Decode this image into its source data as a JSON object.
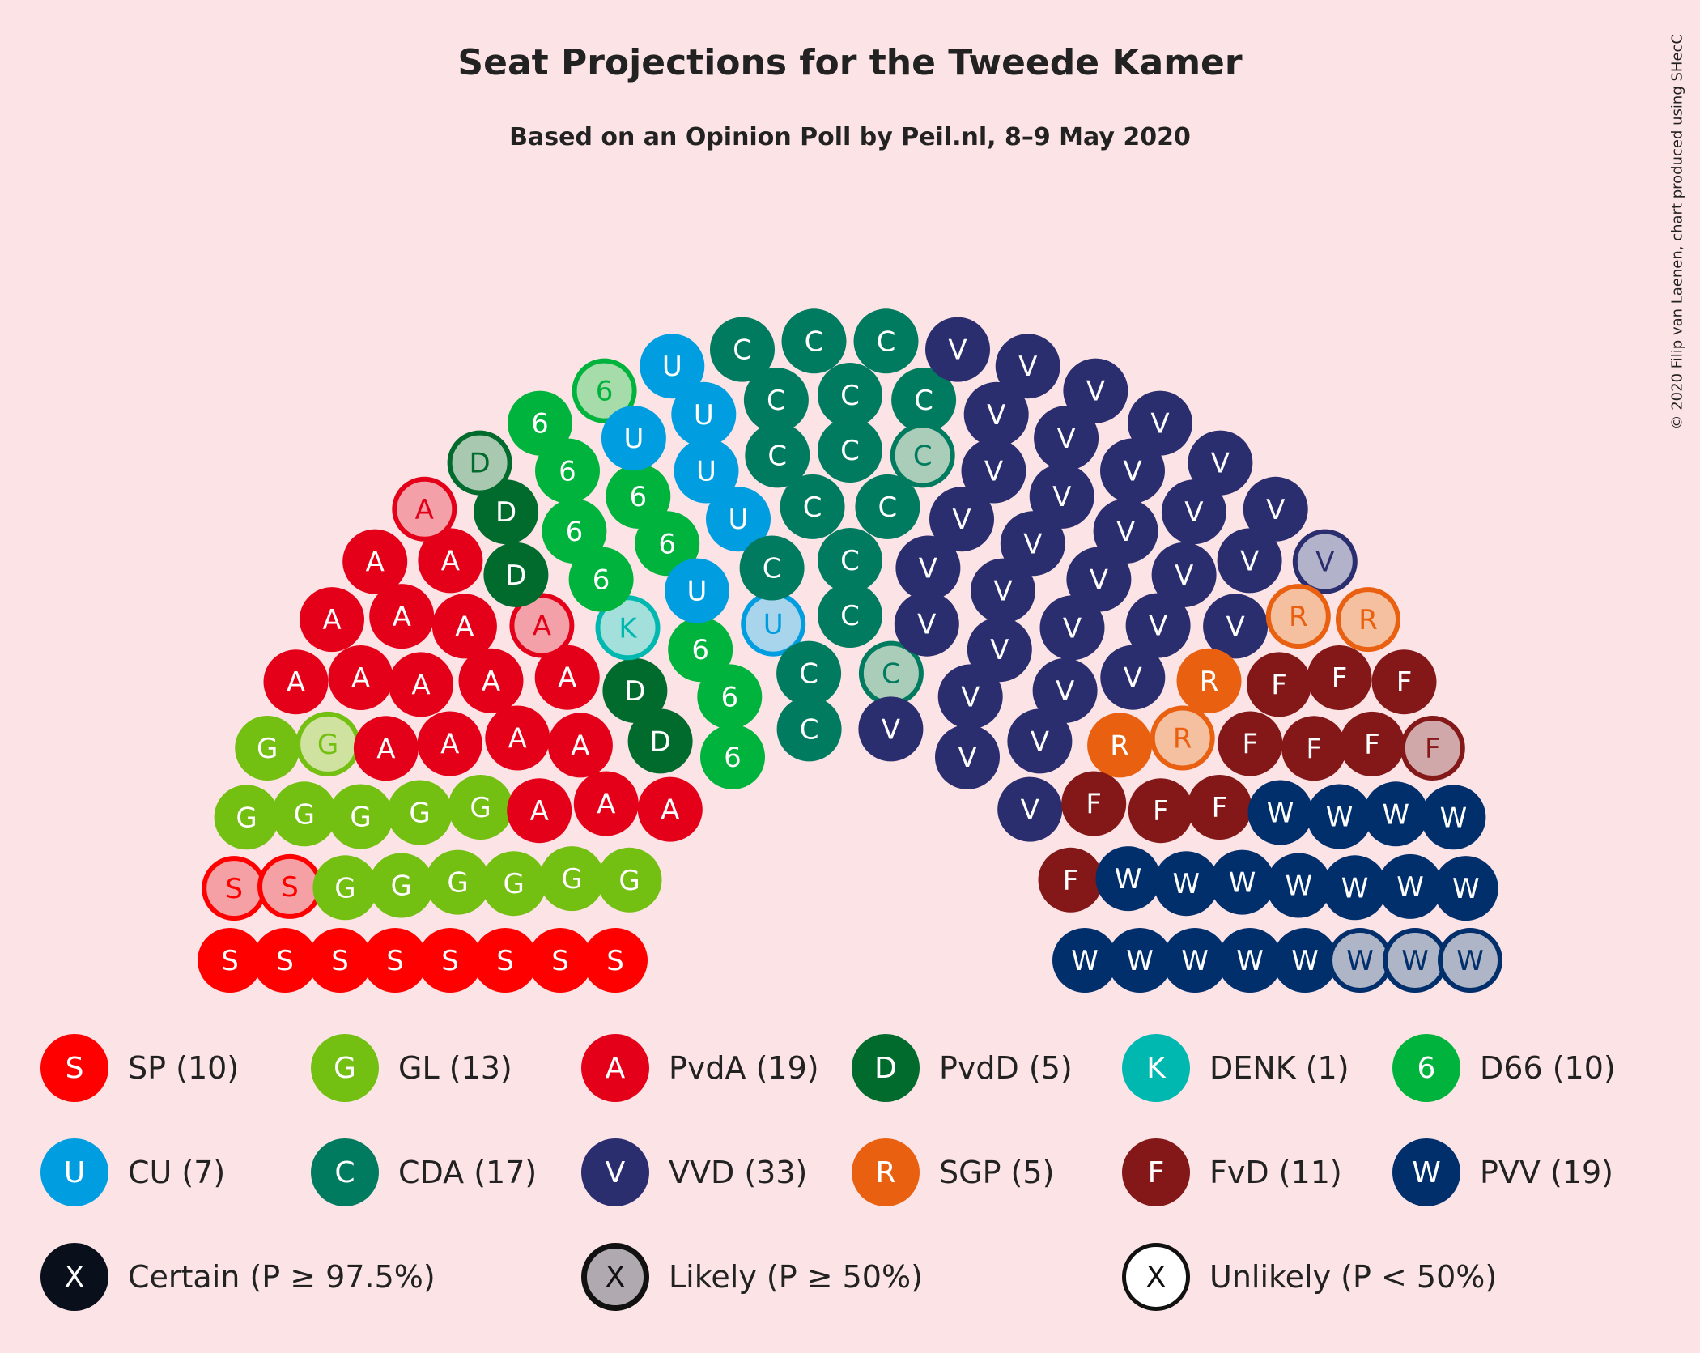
{
  "title": "Seat Projections for the Tweede Kamer",
  "subtitle": "Based on an Opinion Poll by Peil.nl, 8–9 May 2020",
  "credit": "© 2020 Filip van Laenen, chart produced using SHecC",
  "chart_data": {
    "type": "parliament",
    "total_seats": 150,
    "parties": [
      {
        "name": "SP",
        "letter": "S",
        "seats": 10,
        "certain": 8,
        "likely": 2,
        "color": "#ff0000",
        "light": "#f5a0a4"
      },
      {
        "name": "GL",
        "letter": "G",
        "seats": 13,
        "certain": 12,
        "likely": 1,
        "color": "#73bf12",
        "light": "#cfe29f"
      },
      {
        "name": "PvdA",
        "letter": "A",
        "seats": 19,
        "certain": 17,
        "likely": 2,
        "color": "#e50019",
        "light": "#f4a0a8"
      },
      {
        "name": "PvdD",
        "letter": "D",
        "seats": 5,
        "certain": 4,
        "likely": 1,
        "color": "#006b2d",
        "light": "#a9c8b0"
      },
      {
        "name": "DENK",
        "letter": "K",
        "seats": 1,
        "certain": 0,
        "likely": 1,
        "color": "#00b8b0",
        "light": "#a3e0dc"
      },
      {
        "name": "D66",
        "letter": "6",
        "seats": 10,
        "certain": 9,
        "likely": 1,
        "color": "#00b33c",
        "light": "#a5dca9"
      },
      {
        "name": "CU",
        "letter": "U",
        "seats": 7,
        "certain": 6,
        "likely": 1,
        "color": "#009ee0",
        "light": "#a8d4ec"
      },
      {
        "name": "CDA",
        "letter": "C",
        "seats": 17,
        "certain": 15,
        "likely": 2,
        "color": "#007b5f",
        "light": "#a9cdb9"
      },
      {
        "name": "VVD",
        "letter": "V",
        "seats": 33,
        "certain": 32,
        "likely": 1,
        "color": "#2a2d6e",
        "light": "#b3b2cb"
      },
      {
        "name": "SGP",
        "letter": "R",
        "seats": 5,
        "certain": 2,
        "likely": 3,
        "color": "#e96010",
        "light": "#f5c09f"
      },
      {
        "name": "FvD",
        "letter": "F",
        "seats": 11,
        "certain": 10,
        "likely": 1,
        "color": "#841818",
        "light": "#d1a8a9"
      },
      {
        "name": "PVV",
        "letter": "W",
        "seats": 19,
        "certain": 16,
        "likely": 3,
        "color": "#002f6c",
        "light": "#aeb5c6"
      }
    ]
  },
  "legend": {
    "parties": [
      {
        "label": "SP (10)",
        "letter": "S",
        "color": "#ff0000"
      },
      {
        "label": "GL (13)",
        "letter": "G",
        "color": "#73bf12"
      },
      {
        "label": "PvdA (19)",
        "letter": "A",
        "color": "#e50019"
      },
      {
        "label": "PvdD (5)",
        "letter": "D",
        "color": "#006b2d"
      },
      {
        "label": "DENK (1)",
        "letter": "K",
        "color": "#00b8b0"
      },
      {
        "label": "D66 (10)",
        "letter": "6",
        "color": "#00b33c"
      },
      {
        "label": "CU (7)",
        "letter": "U",
        "color": "#009ee0"
      },
      {
        "label": "CDA (17)",
        "letter": "C",
        "color": "#007b5f"
      },
      {
        "label": "VVD (33)",
        "letter": "V",
        "color": "#2a2d6e"
      },
      {
        "label": "SGP (5)",
        "letter": "R",
        "color": "#e96010"
      },
      {
        "label": "FvD (11)",
        "letter": "F",
        "color": "#841818"
      },
      {
        "label": "PVV (19)",
        "letter": "W",
        "color": "#002f6c"
      }
    ],
    "probability": [
      {
        "label": "Certain (P ≥ 97.5%)",
        "letter": "X",
        "style": "certain"
      },
      {
        "label": "Likely (P ≥ 50%)",
        "letter": "X",
        "style": "likely"
      },
      {
        "label": "Unlikely (P < 50%)",
        "letter": "X",
        "style": "unlikely"
      }
    ]
  }
}
